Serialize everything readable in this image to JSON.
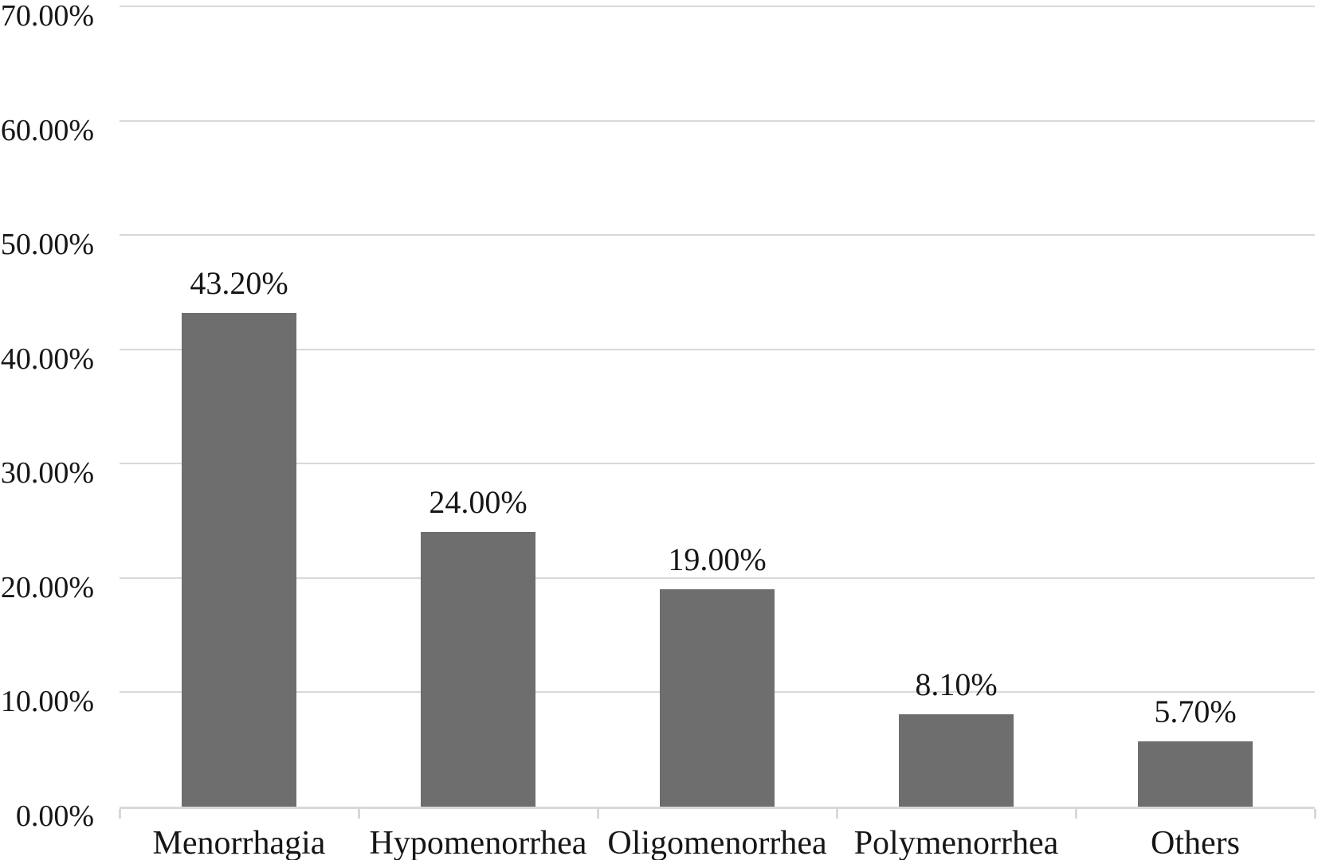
{
  "chart_data": {
    "type": "bar",
    "title": "",
    "xlabel": "",
    "ylabel": "",
    "categories": [
      "Menorrhagia",
      "Hypomenorrhea",
      "Oligomenorrhea",
      "Polymenorrhea",
      "Others"
    ],
    "values": [
      43.2,
      24.0,
      19.0,
      8.1,
      5.7
    ],
    "data_labels": [
      "43.20%",
      "24.00%",
      "19.00%",
      "8.10%",
      "5.70%"
    ],
    "ylim": [
      0,
      70
    ],
    "y_tick_values": [
      0,
      10,
      20,
      30,
      40,
      50,
      60,
      70
    ],
    "y_tick_labels": [
      "0.00%",
      "10.00%",
      "20.00%",
      "30.00%",
      "40.00%",
      "50.00%",
      "60.00%",
      "70.00%"
    ],
    "grid": true,
    "legend": false,
    "colors": {
      "bar": "#6e6e6e",
      "gridline": "#d9d9d9",
      "axis_line": "#d9d9d9",
      "text": "#161616",
      "background": "#ffffff"
    }
  }
}
